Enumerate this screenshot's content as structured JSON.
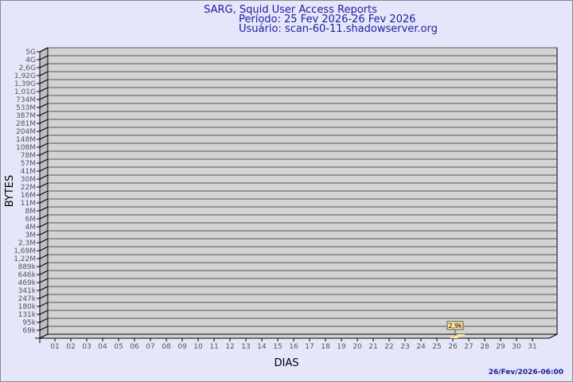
{
  "chart_data": {
    "type": "bar",
    "title": "SARG, Squid User Access Reports",
    "subtitle_lines": [
      "Período: 25 Fev 2026-26 Fev 2026",
      "Usuário: scan-60-11.shadowserver.org"
    ],
    "xlabel": "DIAS",
    "ylabel": "BYTES",
    "y_scale": "log",
    "y_tick_labels": [
      "5G",
      "4G",
      "2,6G",
      "1,92G",
      "1,39G",
      "1,01G",
      "734M",
      "533M",
      "387M",
      "281M",
      "204M",
      "148M",
      "108M",
      "78M",
      "57M",
      "41M",
      "30M",
      "22M",
      "16M",
      "11M",
      "8M",
      "6M",
      "4M",
      "3M",
      "2,3M",
      "1,69M",
      "1,22M",
      "889k",
      "646k",
      "469k",
      "341k",
      "247k",
      "180k",
      "131k",
      "95k",
      "69k"
    ],
    "categories": [
      "01",
      "02",
      "03",
      "04",
      "05",
      "06",
      "07",
      "08",
      "09",
      "10",
      "11",
      "12",
      "13",
      "14",
      "15",
      "16",
      "17",
      "18",
      "19",
      "20",
      "21",
      "22",
      "23",
      "24",
      "25",
      "26",
      "27",
      "28",
      "29",
      "30",
      "31"
    ],
    "points": [
      {
        "x": "26",
        "value": 2900,
        "label": "2,9k"
      }
    ],
    "grid": true,
    "colors": {
      "plot": "#d3d3d3",
      "side": "#bfbfbf",
      "bar": "#ffe89a",
      "title": "#1c1ca0"
    }
  },
  "footer": {
    "timestamp": "26/Fev/2026-06:00"
  }
}
